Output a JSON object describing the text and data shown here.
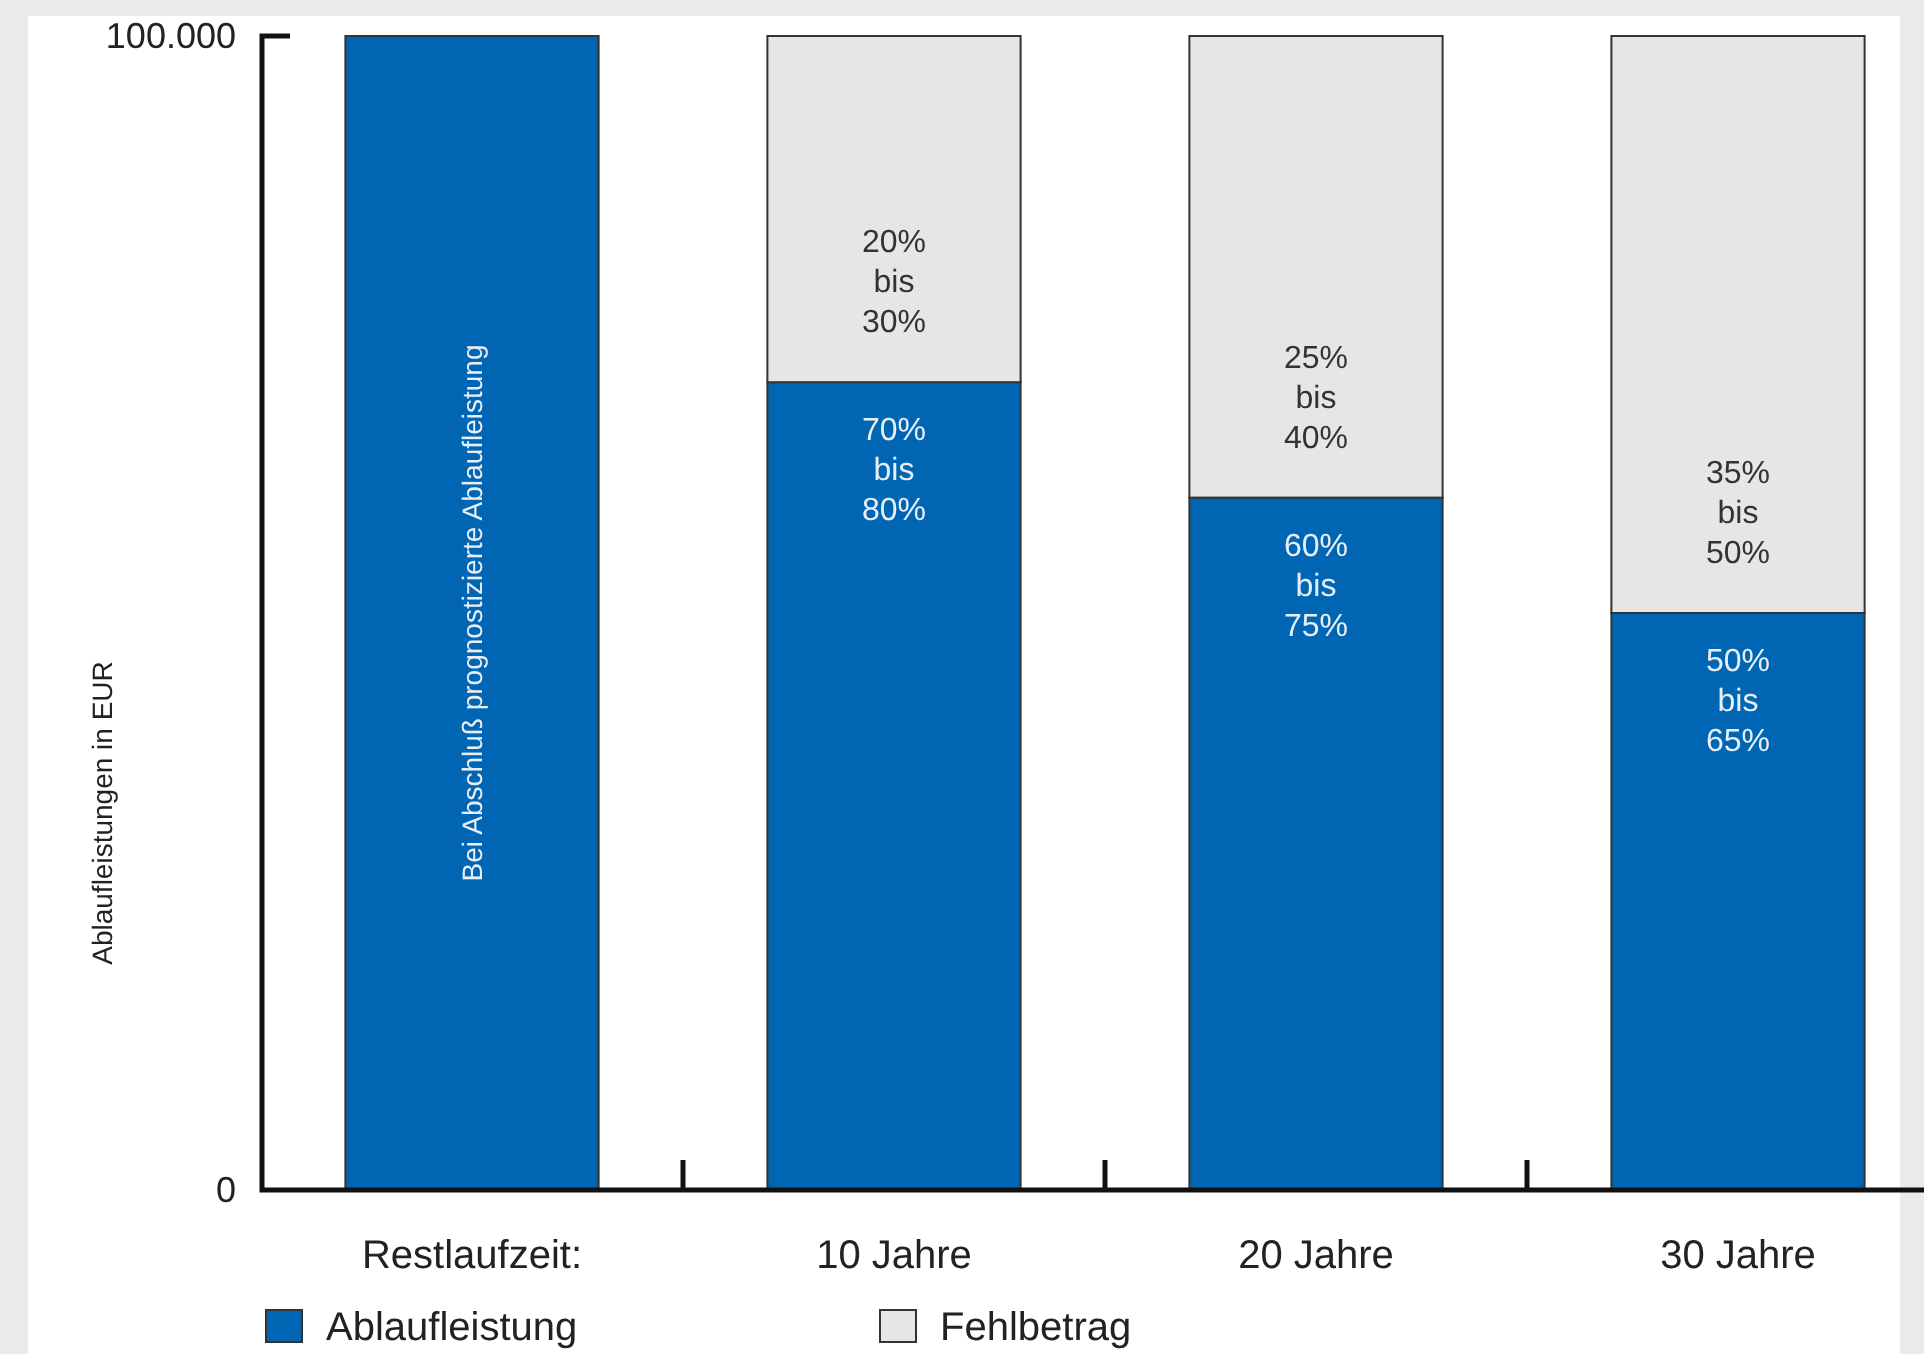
{
  "chart_data": {
    "type": "bar",
    "stacked": true,
    "ylabel": "Ablaufleistungen in EUR",
    "xlabel": "Restlaufzeit:",
    "categories": [
      null,
      "10 Jahre",
      "20 Jahre",
      "30 Jahre"
    ],
    "series": [
      {
        "name": "Ablaufleistung",
        "color": "#0066b3",
        "values": [
          100000,
          70000,
          60000,
          50000
        ]
      },
      {
        "name": "Fehlbetrag",
        "color": "#e6e6e6",
        "values": [
          0,
          30000,
          40000,
          50000
        ]
      }
    ],
    "ylim": [
      0,
      100000
    ],
    "yticks": [
      0,
      {
        "value": 100000,
        "label": "100.000"
      }
    ],
    "annotations": [
      "Bei Abschluß prognostizierte Ablaufleistung",
      "70% bis 80%",
      "60% bis 75%",
      "50% bis 65%",
      "20% bis 30%",
      "25% bis 40%",
      "35% bis 50%"
    ],
    "legend": "bottom left"
  }
}
